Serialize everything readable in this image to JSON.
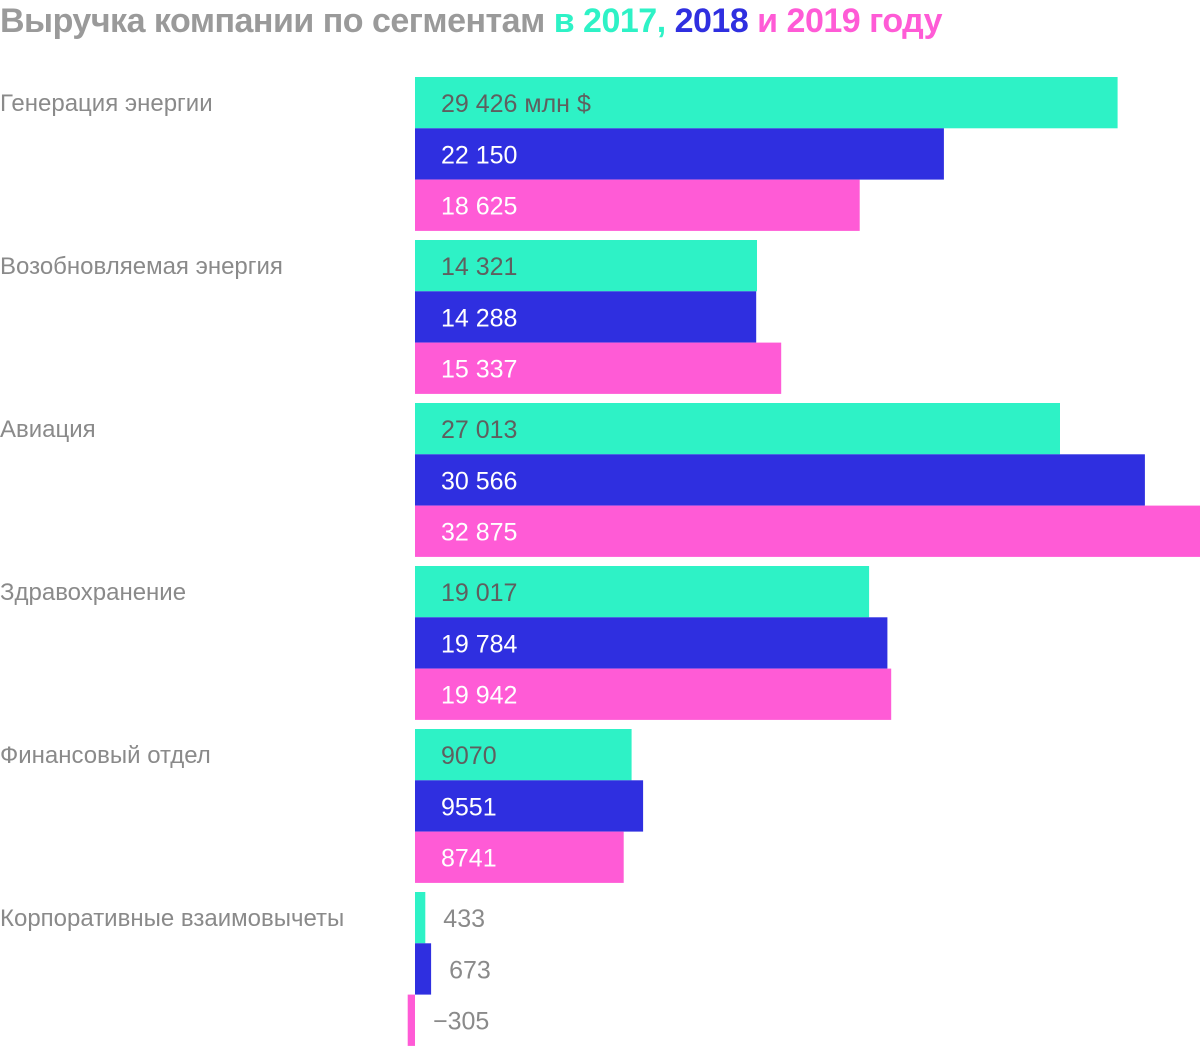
{
  "title": {
    "main": "Выручка компании по сегментам",
    "conn1": " в ",
    "y2017": "2017",
    "comma": ", ",
    "y2018": "2018",
    "conn2": " и ",
    "y2019": "2019",
    "tail": " году"
  },
  "colors": {
    "title_gray": "#9a9a9a",
    "y2017": "#2ef2c6",
    "y2018": "#2f2fe0",
    "y2019": "#ff5bd6",
    "label_gray": "#8a8a8a",
    "value_dark": "#5f5f5f",
    "value_light": "#ffffff"
  },
  "chart_data": {
    "type": "bar",
    "orientation": "horizontal",
    "title": "Выручка компании по сегментам в 2017, 2018 и 2019 году",
    "unit_label": "млн $",
    "categories": [
      "Генерация энергии",
      "Возобновляемая энергия",
      "Авиация",
      "Здравохранение",
      "Финансовый отдел",
      "Корпоративные взаимовычеты"
    ],
    "series": [
      {
        "name": "2017",
        "color": "#2ef2c6",
        "values": [
          29426,
          14321,
          27013,
          19017,
          9070,
          433
        ],
        "labels": [
          "29 426 млн $",
          "14 321",
          "27 013",
          "19 017",
          "9070",
          "433"
        ]
      },
      {
        "name": "2018",
        "color": "#2f2fe0",
        "values": [
          22150,
          14288,
          30566,
          19784,
          9551,
          673
        ],
        "labels": [
          "22 150",
          "14 288",
          "30 566",
          "19 784",
          "9551",
          "673"
        ]
      },
      {
        "name": "2019",
        "color": "#ff5bd6",
        "values": [
          18625,
          15337,
          32875,
          19942,
          8741,
          -305
        ],
        "labels": [
          "18 625",
          "15 337",
          "32 875",
          "19 942",
          "8741",
          "−305"
        ]
      }
    ],
    "xlim": [
      -305,
      32875
    ],
    "grid": false,
    "legend": "in title"
  }
}
